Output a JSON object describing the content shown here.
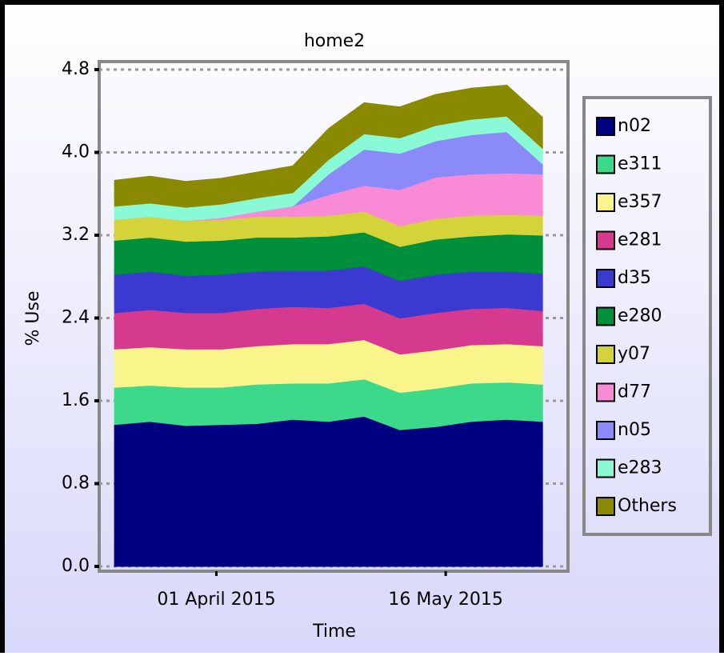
{
  "chart_data": {
    "type": "stacked_area",
    "title": "home2",
    "ylabel": "% Use",
    "xlabel": "Time",
    "x": [
      "2015-03-12",
      "2015-03-19",
      "2015-03-26",
      "2015-04-02",
      "2015-04-09",
      "2015-04-16",
      "2015-04-23",
      "2015-04-30",
      "2015-05-07",
      "2015-05-14",
      "2015-05-21",
      "2015-05-28",
      "2015-06-04"
    ],
    "xlim": [
      "2015-03-09",
      "2015-06-09"
    ],
    "xticks": [
      {
        "value": "2015-04-01",
        "label": "01 April 2015"
      },
      {
        "value": "2015-05-16",
        "label": "16 May 2015"
      }
    ],
    "ylim": [
      0,
      4.8
    ],
    "yticks": [
      {
        "value": 0,
        "label": "0.0"
      },
      0.8,
      1.6,
      2.4,
      3.2,
      {
        "value": 4,
        "label": "4.0"
      },
      4.8
    ],
    "grid": true,
    "legend": "right",
    "series": [
      {
        "name": "n02",
        "color": "#000080",
        "values": [
          1.37,
          1.4,
          1.36,
          1.37,
          1.38,
          1.42,
          1.4,
          1.45,
          1.32,
          1.35,
          1.4,
          1.42,
          1.4
        ]
      },
      {
        "name": "e311",
        "color": "#3cd98a",
        "values": [
          0.36,
          0.35,
          0.37,
          0.36,
          0.38,
          0.35,
          0.37,
          0.36,
          0.36,
          0.37,
          0.37,
          0.36,
          0.36
        ]
      },
      {
        "name": "e357",
        "color": "#f9f58a",
        "values": [
          0.37,
          0.37,
          0.37,
          0.37,
          0.37,
          0.38,
          0.38,
          0.38,
          0.37,
          0.37,
          0.37,
          0.37,
          0.37
        ]
      },
      {
        "name": "e281",
        "color": "#d63a8e",
        "values": [
          0.35,
          0.36,
          0.35,
          0.35,
          0.36,
          0.36,
          0.35,
          0.35,
          0.35,
          0.36,
          0.35,
          0.35,
          0.34
        ]
      },
      {
        "name": "d35",
        "color": "#3a3ad0",
        "values": [
          0.37,
          0.37,
          0.36,
          0.37,
          0.36,
          0.35,
          0.36,
          0.36,
          0.36,
          0.37,
          0.36,
          0.35,
          0.36
        ]
      },
      {
        "name": "e280",
        "color": "#008f3a",
        "values": [
          0.33,
          0.33,
          0.33,
          0.33,
          0.33,
          0.32,
          0.33,
          0.33,
          0.33,
          0.34,
          0.34,
          0.36,
          0.37
        ]
      },
      {
        "name": "y07",
        "color": "#d4d43a",
        "values": [
          0.2,
          0.2,
          0.2,
          0.2,
          0.2,
          0.2,
          0.2,
          0.2,
          0.2,
          0.2,
          0.2,
          0.19,
          0.19
        ]
      },
      {
        "name": "d77",
        "color": "#f98ad6",
        "values": [
          0,
          0,
          0,
          0.02,
          0.05,
          0.1,
          0.2,
          0.25,
          0.35,
          0.4,
          0.4,
          0.4,
          0.4
        ]
      },
      {
        "name": "n05",
        "color": "#8a8af9",
        "values": [
          0,
          0,
          0,
          0,
          0,
          0,
          0.2,
          0.35,
          0.35,
          0.35,
          0.38,
          0.4,
          0.1
        ]
      },
      {
        "name": "e283",
        "color": "#8af9d6",
        "values": [
          0.13,
          0.13,
          0.13,
          0.13,
          0.13,
          0.13,
          0.14,
          0.15,
          0.15,
          0.15,
          0.15,
          0.15,
          0.15
        ]
      },
      {
        "name": "Others",
        "color": "#8a8a00",
        "values": [
          0.25,
          0.26,
          0.25,
          0.25,
          0.25,
          0.26,
          0.3,
          0.3,
          0.3,
          0.3,
          0.3,
          0.3,
          0.3
        ]
      }
    ]
  }
}
